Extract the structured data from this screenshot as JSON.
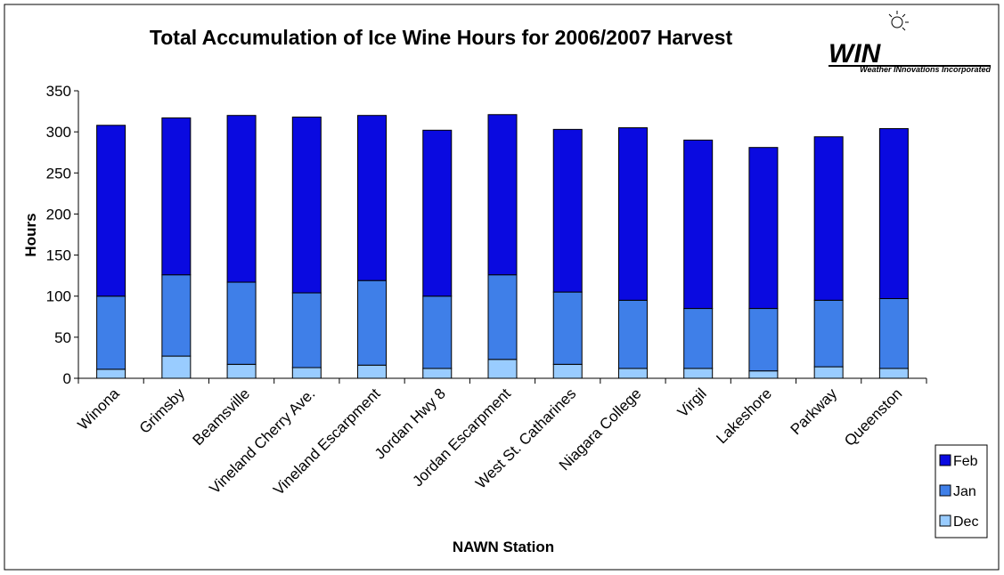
{
  "chart_data": {
    "type": "stacked_bar",
    "title": "Total Accumulation of Ice Wine Hours for 2006/2007 Harvest",
    "logo": "WIN",
    "logo_caption": "Weather INnovations Incorporated",
    "x_label": "NAWN Station",
    "y_label": "Hours",
    "categories": [
      "Winona",
      "Grimsby",
      "Beamsville",
      "Vineland Cherry Ave.",
      "Vineland Escarpment",
      "Jordan Hwy 8",
      "Jordan Escarpment",
      "West St. Catharines",
      "Niagara College",
      "Virgil",
      "Lakeshore",
      "Parkway",
      "Queenston"
    ],
    "series": [
      {
        "name": "Dec",
        "color": "#99ccff",
        "values": [
          11,
          27,
          17,
          13,
          16,
          12,
          23,
          17,
          12,
          12,
          9,
          14,
          12
        ]
      },
      {
        "name": "Jan",
        "color": "#3f7fe8",
        "values": [
          89,
          99,
          100,
          91,
          103,
          88,
          103,
          88,
          83,
          73,
          76,
          81,
          85
        ]
      },
      {
        "name": "Feb",
        "color": "#0a0ae0",
        "values": [
          208,
          191,
          203,
          214,
          201,
          202,
          195,
          198,
          210,
          205,
          196,
          199,
          207
        ]
      }
    ],
    "ylim": [
      0,
      350
    ],
    "yticks": [
      0,
      50,
      100,
      150,
      200,
      250,
      300,
      350
    ],
    "legend": "bottom-right"
  }
}
